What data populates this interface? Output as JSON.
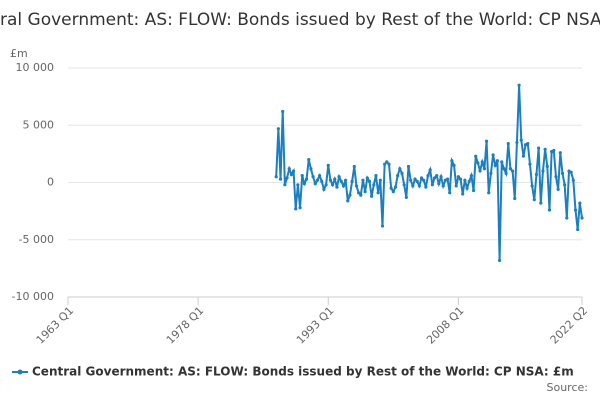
{
  "chart_data": {
    "type": "line",
    "title": "Central Government: AS: FLOW: Bonds issued by Rest of the World: CP NSA: £m",
    "y_unit": "£m",
    "source": "Source:",
    "categories": [
      "1963 Q1",
      null,
      null,
      null,
      null,
      null,
      null,
      null,
      null,
      null,
      null,
      null,
      null,
      null,
      null,
      null,
      null,
      null,
      null,
      null,
      null,
      null,
      null,
      null,
      null,
      null,
      null,
      null,
      null,
      null,
      null,
      null,
      null,
      null,
      null,
      null,
      null,
      null,
      null,
      null,
      null,
      null,
      null,
      null,
      null,
      null,
      null,
      null,
      null,
      null,
      null,
      null,
      null,
      null,
      null,
      null,
      null,
      null,
      null,
      null,
      "1978 Q1",
      null,
      null,
      null,
      null,
      null,
      null,
      null,
      null,
      null,
      null,
      null,
      null,
      null,
      null,
      null,
      null,
      null,
      null,
      null,
      null,
      null,
      null,
      null,
      null,
      null,
      null,
      null,
      null,
      null,
      null,
      null,
      null,
      null,
      null,
      null,
      null,
      null,
      null,
      null,
      null,
      null,
      null,
      null,
      null,
      null,
      null,
      null,
      null,
      null,
      null,
      null,
      null,
      null,
      null,
      null,
      null,
      null,
      null,
      null,
      "1993 Q1",
      null,
      null,
      null,
      null,
      null,
      null,
      null,
      null,
      null,
      null,
      null,
      null,
      null,
      null,
      null,
      null,
      null,
      null,
      null,
      null,
      null,
      null,
      null,
      null,
      null,
      null,
      null,
      null,
      null,
      null,
      null,
      null,
      null,
      null,
      null,
      null,
      null,
      null,
      null,
      null,
      null,
      null,
      null,
      null,
      null,
      null,
      null,
      null,
      null,
      null,
      null,
      null,
      null,
      null,
      null,
      null,
      null,
      null,
      null,
      "2008 Q1",
      null,
      null,
      null,
      null,
      null,
      null,
      null,
      null,
      null,
      null,
      null,
      null,
      null,
      null,
      null,
      null,
      null,
      null,
      null,
      null,
      null,
      null,
      null,
      null,
      null,
      null,
      null,
      null,
      null,
      null,
      null,
      null,
      null,
      null,
      null,
      null,
      null,
      null,
      null,
      null,
      null,
      null,
      null,
      null,
      null,
      null,
      null,
      null,
      null,
      null,
      null,
      null,
      null,
      null,
      null,
      null,
      "2022 Q2"
    ],
    "series": [
      {
        "name": "Central Government: AS: FLOW: Bonds issued by Rest of the World: CP NSA: £m",
        "color": "#1b7fc0",
        "values": [
          null,
          null,
          null,
          null,
          null,
          null,
          null,
          null,
          null,
          null,
          null,
          null,
          null,
          null,
          null,
          null,
          null,
          null,
          null,
          null,
          null,
          null,
          null,
          null,
          null,
          null,
          null,
          null,
          null,
          null,
          null,
          null,
          null,
          null,
          null,
          null,
          null,
          null,
          null,
          null,
          null,
          null,
          null,
          null,
          null,
          null,
          null,
          null,
          null,
          null,
          null,
          null,
          null,
          null,
          null,
          null,
          null,
          null,
          null,
          null,
          null,
          null,
          null,
          null,
          null,
          null,
          null,
          null,
          null,
          null,
          null,
          null,
          null,
          null,
          null,
          null,
          null,
          null,
          null,
          null,
          null,
          null,
          null,
          null,
          null,
          null,
          null,
          null,
          null,
          null,
          null,
          null,
          null,
          null,
          null,
          null,
          500,
          4700,
          300,
          6200,
          -200,
          400,
          1200,
          700,
          1000,
          -2300,
          -200,
          -2200,
          600,
          -100,
          300,
          2000,
          1200,
          500,
          -100,
          200,
          600,
          100,
          -600,
          -200,
          1500,
          200,
          -200,
          300,
          -400,
          500,
          100,
          -300,
          200,
          -1600,
          -1100,
          100,
          1400,
          -300,
          -900,
          -1100,
          200,
          -800,
          400,
          100,
          -1200,
          -200,
          600,
          -900,
          200,
          -3800,
          1600,
          1800,
          1600,
          -500,
          -800,
          -400,
          600,
          1200,
          800,
          -200,
          -1300,
          1400,
          200,
          -300,
          300,
          100,
          -300,
          400,
          200,
          -400,
          600,
          1100,
          -200,
          400,
          600,
          -100,
          500,
          -300,
          200,
          300,
          -900,
          1900,
          1500,
          -300,
          500,
          300,
          -1000,
          200,
          -500,
          100,
          600,
          -700,
          2300,
          1700,
          1000,
          1800,
          1200,
          3600,
          -900,
          800,
          2400,
          1500,
          1900,
          -6800,
          1800,
          1200,
          800,
          3400,
          1200,
          1000,
          -1400,
          3500,
          8500,
          3700,
          2300,
          3300,
          3400,
          1600,
          -300,
          -1500,
          700,
          3000,
          -1800,
          1000,
          2900,
          1400,
          -2400,
          2700,
          2800,
          500,
          -600,
          2600,
          800,
          -200,
          -3100,
          1000,
          900,
          200,
          -2400,
          -4100,
          -1800,
          -3100
        ]
      }
    ],
    "ylim": [
      -10000,
      10000
    ],
    "yticks": [
      {
        "value": -10000,
        "label": "-10 000"
      },
      {
        "value": -5000,
        "label": "-5 000"
      },
      0,
      {
        "value": 5000,
        "label": "5 000"
      },
      {
        "value": 10000,
        "label": "10 000"
      }
    ],
    "grid": true,
    "legend": "bottom"
  }
}
